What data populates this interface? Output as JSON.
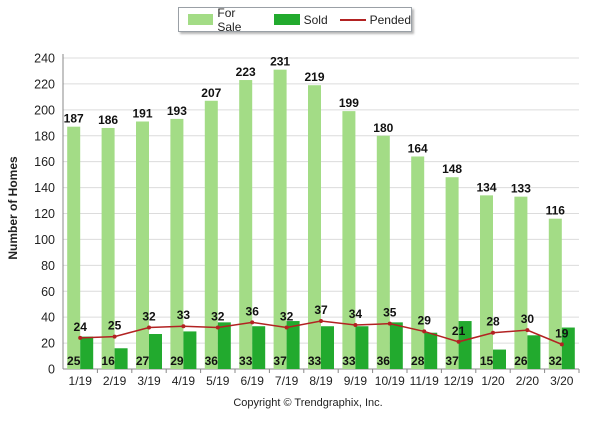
{
  "colors": {
    "for_sale": "#a3dc86",
    "sold": "#22aa2e",
    "pended": "#b22222"
  },
  "legend": {
    "for_sale": "For Sale",
    "sold": "Sold",
    "pended": "Pended"
  },
  "copyright": "Copyright © Trendgraphix, Inc.",
  "chart_data": {
    "type": "bar",
    "ylabel": "Number of Homes",
    "xlabel": "",
    "ylim": [
      0,
      240
    ],
    "yticks": [
      0,
      20,
      40,
      60,
      80,
      100,
      120,
      140,
      160,
      180,
      200,
      220,
      240
    ],
    "categories": [
      "1/19",
      "2/19",
      "3/19",
      "4/19",
      "5/19",
      "6/19",
      "7/19",
      "8/19",
      "9/19",
      "10/19",
      "11/19",
      "12/19",
      "1/20",
      "2/20",
      "3/20"
    ],
    "series": [
      {
        "name": "For Sale",
        "type": "bar",
        "values": [
          187,
          186,
          191,
          193,
          207,
          223,
          231,
          219,
          199,
          180,
          164,
          148,
          134,
          133,
          116
        ]
      },
      {
        "name": "Sold",
        "type": "bar",
        "values": [
          25,
          16,
          27,
          29,
          36,
          33,
          37,
          33,
          33,
          36,
          28,
          37,
          15,
          26,
          32
        ]
      },
      {
        "name": "Pended",
        "type": "line",
        "values": [
          24,
          25,
          32,
          33,
          32,
          36,
          32,
          37,
          34,
          35,
          29,
          21,
          28,
          30,
          19
        ]
      }
    ],
    "grid": true,
    "legend_position": "top-center"
  }
}
